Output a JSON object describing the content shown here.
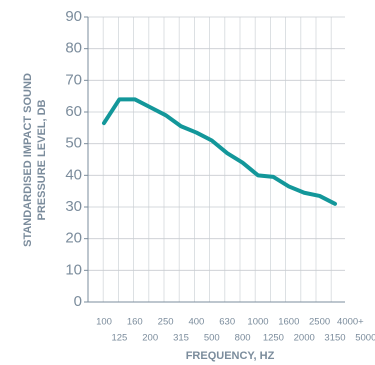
{
  "chart_data": {
    "type": "line",
    "ylabel": [
      "STANDARDISED IMPACT SOUND",
      "PRESSURE LEVEL, DB"
    ],
    "xlabel": "FREQUENCY, HZ",
    "categories": [
      "100",
      "125",
      "160",
      "200",
      "250",
      "315",
      "400",
      "500",
      "630",
      "800",
      "1000",
      "1250",
      "1600",
      "2000",
      "2500",
      "3150",
      "4000+",
      "5000"
    ],
    "series": [
      {
        "color": "#13979a",
        "values": [
          56.5,
          64,
          64,
          61.5,
          59,
          55.5,
          53.5,
          51,
          47,
          44,
          40,
          39.5,
          36.5,
          34.5,
          33.5,
          31,
          null,
          null
        ]
      }
    ],
    "ylim": [
      0,
      90
    ],
    "yticks": [
      0,
      10,
      20,
      30,
      40,
      50,
      60,
      70,
      80,
      90
    ],
    "grid": true
  }
}
